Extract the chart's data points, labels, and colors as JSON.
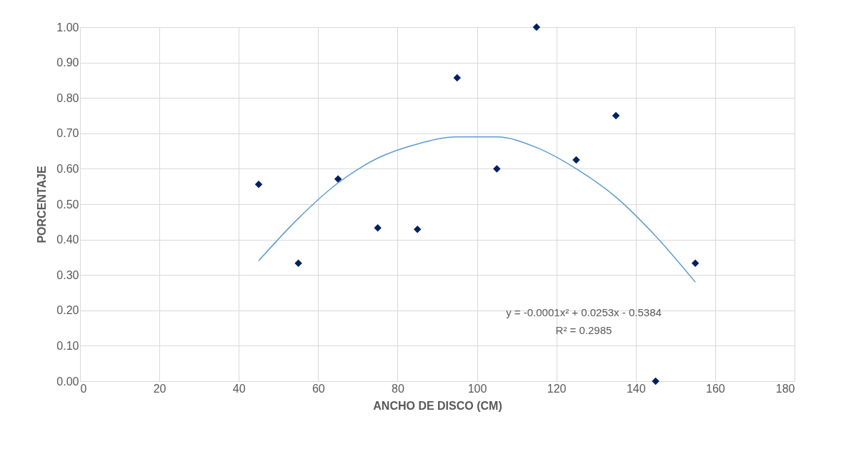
{
  "chart_data": {
    "type": "scatter",
    "xlabel": "ANCHO DE DISCO (CM)",
    "ylabel": "PORCENTAJE",
    "xlim": [
      0,
      180
    ],
    "xticks": [
      0,
      20,
      40,
      60,
      80,
      100,
      120,
      140,
      160,
      180
    ],
    "ylim": [
      0,
      1
    ],
    "yticks": [
      {
        "value": 0,
        "label": "0.00"
      },
      {
        "value": 0.1,
        "label": "0.10"
      },
      {
        "value": 0.2,
        "label": "0.20"
      },
      {
        "value": 0.3,
        "label": "0.30"
      },
      {
        "value": 0.4,
        "label": "0.40"
      },
      {
        "value": 0.5,
        "label": "0.50"
      },
      {
        "value": 0.6,
        "label": "0.60"
      },
      {
        "value": 0.7,
        "label": "0.70"
      },
      {
        "value": 0.8,
        "label": "0.80"
      },
      {
        "value": 0.9,
        "label": "0.90"
      },
      {
        "value": 1,
        "label": "1.00"
      }
    ],
    "grid": true,
    "series": [
      {
        "marker": "diamond",
        "color": "#002060",
        "x": [
          45,
          55,
          65,
          75,
          85,
          95,
          105,
          115,
          125,
          135,
          145,
          155
        ],
        "values": [
          0.556,
          0.333,
          0.571,
          0.433,
          0.429,
          0.857,
          0.6,
          1.0,
          0.625,
          0.75,
          0.0,
          0.333
        ]
      },
      {
        "type": "line",
        "color": "#5b9bd5",
        "x": [
          45,
          55,
          65,
          75,
          85,
          95,
          105,
          115,
          125,
          135,
          145,
          155
        ],
        "values": [
          0.34,
          0.46,
          0.56,
          0.63,
          0.67,
          0.69,
          0.69,
          0.66,
          0.6,
          0.52,
          0.41,
          0.28
        ]
      }
    ],
    "annotations": [
      "y = -0.0001x² + 0.0253x - 0.5384",
      "R² = 0.2985"
    ]
  }
}
